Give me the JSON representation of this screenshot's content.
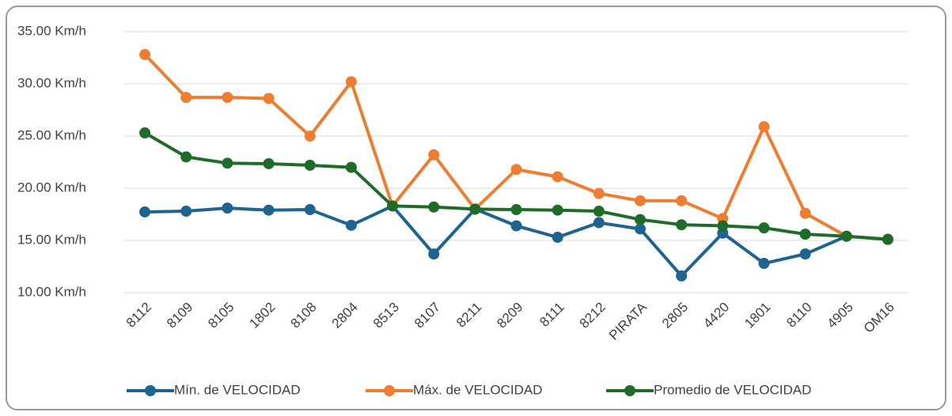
{
  "chart_data": {
    "type": "line",
    "categories": [
      "8112",
      "8109",
      "8105",
      "1802",
      "8108",
      "2804",
      "8513",
      "8107",
      "8211",
      "8209",
      "8111",
      "8212",
      "PIRATA",
      "2805",
      "4420",
      "1801",
      "8110",
      "4905",
      "OM16"
    ],
    "series": [
      {
        "name": "Mín. de VELOCIDAD",
        "color": "#1f6391",
        "values": [
          17.73,
          17.8,
          18.1,
          17.9,
          17.95,
          16.45,
          18.3,
          13.7,
          18.0,
          16.4,
          15.3,
          16.7,
          16.1,
          11.6,
          15.7,
          12.8,
          13.7,
          15.4,
          15.1
        ]
      },
      {
        "name": "Máx. de VELOCIDAD",
        "color": "#ed7d31",
        "values": [
          32.8,
          28.7,
          28.7,
          28.6,
          25.0,
          30.2,
          18.3,
          23.2,
          18.0,
          21.8,
          21.1,
          19.5,
          18.8,
          18.8,
          17.1,
          25.9,
          17.6,
          15.4,
          15.1
        ]
      },
      {
        "name": "Promedio de VELOCIDAD",
        "color": "#1e6b2a",
        "values": [
          25.3,
          23.0,
          22.4,
          22.35,
          22.2,
          22.0,
          18.3,
          18.2,
          18.0,
          17.95,
          17.9,
          17.8,
          17.0,
          16.5,
          16.4,
          16.2,
          15.6,
          15.4,
          15.1
        ]
      }
    ],
    "ylim": [
      10,
      35
    ],
    "yticks": [
      {
        "value": 10,
        "label": "10.00 Km/h"
      },
      {
        "value": 15,
        "label": "15.00 Km/h"
      },
      {
        "value": 20,
        "label": "20.00 Km/h"
      },
      {
        "value": 25,
        "label": "25.00 Km/h"
      },
      {
        "value": 30,
        "label": "30.00 Km/h"
      },
      {
        "value": 35,
        "label": "35.00 Km/h"
      }
    ],
    "grid": true,
    "legend": "bottom"
  }
}
